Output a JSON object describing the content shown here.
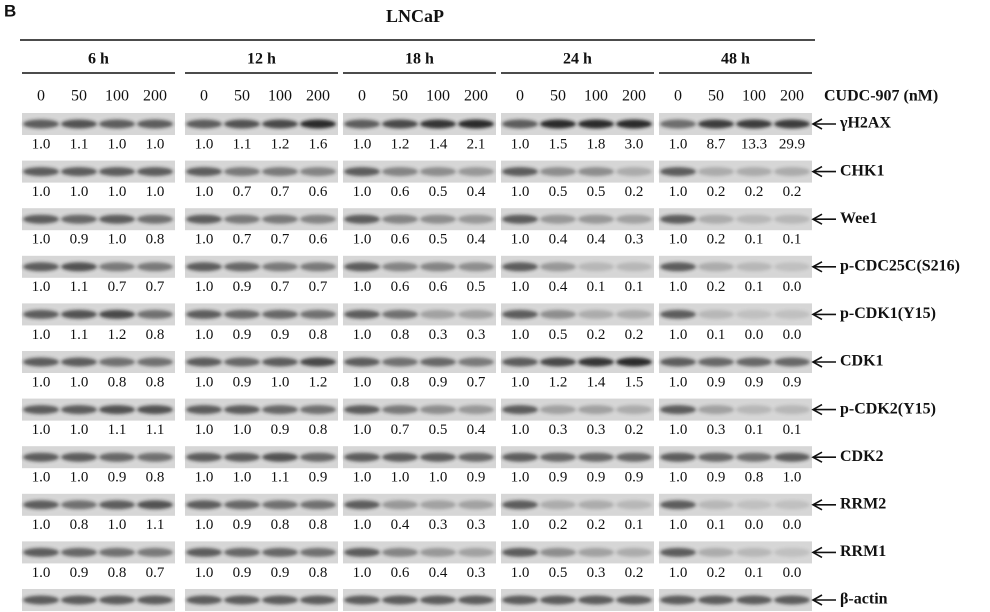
{
  "panel": "B",
  "title": "LNCaP",
  "treatment": "CUDC-907 (nM)",
  "timepoints": [
    {
      "label": "6 h",
      "doses": [
        "0",
        "50",
        "100",
        "200"
      ]
    },
    {
      "label": "12 h",
      "doses": [
        "0",
        "50",
        "100",
        "200"
      ]
    },
    {
      "label": "18 h",
      "doses": [
        "0",
        "50",
        "100",
        "200"
      ]
    },
    {
      "label": "24 h",
      "doses": [
        "0",
        "50",
        "100",
        "200"
      ]
    },
    {
      "label": "48 h",
      "doses": [
        "0",
        "50",
        "100",
        "200"
      ]
    }
  ],
  "rows": [
    {
      "protein": "γH2AX",
      "values": [
        [
          "1.0",
          "1.1",
          "1.0",
          "1.0"
        ],
        [
          "1.0",
          "1.1",
          "1.2",
          "1.6"
        ],
        [
          "1.0",
          "1.2",
          "1.4",
          "2.1"
        ],
        [
          "1.0",
          "1.5",
          "1.8",
          "3.0"
        ],
        [
          "1.0",
          "8.7",
          "13.3",
          "29.9"
        ]
      ]
    },
    {
      "protein": "CHK1",
      "values": [
        [
          "1.0",
          "1.0",
          "1.0",
          "1.0"
        ],
        [
          "1.0",
          "0.7",
          "0.7",
          "0.6"
        ],
        [
          "1.0",
          "0.6",
          "0.5",
          "0.4"
        ],
        [
          "1.0",
          "0.5",
          "0.5",
          "0.2"
        ],
        [
          "1.0",
          "0.2",
          "0.2",
          "0.2"
        ]
      ]
    },
    {
      "protein": "Wee1",
      "values": [
        [
          "1.0",
          "0.9",
          "1.0",
          "0.8"
        ],
        [
          "1.0",
          "0.7",
          "0.7",
          "0.6"
        ],
        [
          "1.0",
          "0.6",
          "0.5",
          "0.4"
        ],
        [
          "1.0",
          "0.4",
          "0.4",
          "0.3"
        ],
        [
          "1.0",
          "0.2",
          "0.1",
          "0.1"
        ]
      ]
    },
    {
      "protein": "p-CDC25C(S216)",
      "values": [
        [
          "1.0",
          "1.1",
          "0.7",
          "0.7"
        ],
        [
          "1.0",
          "0.9",
          "0.7",
          "0.7"
        ],
        [
          "1.0",
          "0.6",
          "0.6",
          "0.5"
        ],
        [
          "1.0",
          "0.4",
          "0.1",
          "0.1"
        ],
        [
          "1.0",
          "0.2",
          "0.1",
          "0.0"
        ]
      ]
    },
    {
      "protein": "p-CDK1(Y15)",
      "values": [
        [
          "1.0",
          "1.1",
          "1.2",
          "0.8"
        ],
        [
          "1.0",
          "0.9",
          "0.9",
          "0.8"
        ],
        [
          "1.0",
          "0.8",
          "0.3",
          "0.3"
        ],
        [
          "1.0",
          "0.5",
          "0.2",
          "0.2"
        ],
        [
          "1.0",
          "0.1",
          "0.0",
          "0.0"
        ]
      ]
    },
    {
      "protein": "CDK1",
      "values": [
        [
          "1.0",
          "1.0",
          "0.8",
          "0.8"
        ],
        [
          "1.0",
          "0.9",
          "1.0",
          "1.2"
        ],
        [
          "1.0",
          "0.8",
          "0.9",
          "0.7"
        ],
        [
          "1.0",
          "1.2",
          "1.4",
          "1.5"
        ],
        [
          "1.0",
          "0.9",
          "0.9",
          "0.9"
        ]
      ]
    },
    {
      "protein": "p-CDK2(Y15)",
      "values": [
        [
          "1.0",
          "1.0",
          "1.1",
          "1.1"
        ],
        [
          "1.0",
          "1.0",
          "0.9",
          "0.8"
        ],
        [
          "1.0",
          "0.7",
          "0.5",
          "0.4"
        ],
        [
          "1.0",
          "0.3",
          "0.3",
          "0.2"
        ],
        [
          "1.0",
          "0.3",
          "0.1",
          "0.1"
        ]
      ]
    },
    {
      "protein": "CDK2",
      "values": [
        [
          "1.0",
          "1.0",
          "0.9",
          "0.8"
        ],
        [
          "1.0",
          "1.0",
          "1.1",
          "0.9"
        ],
        [
          "1.0",
          "1.0",
          "1.0",
          "0.9"
        ],
        [
          "1.0",
          "0.9",
          "0.9",
          "0.9"
        ],
        [
          "1.0",
          "0.9",
          "0.8",
          "1.0"
        ]
      ]
    },
    {
      "protein": "RRM2",
      "values": [
        [
          "1.0",
          "0.8",
          "1.0",
          "1.1"
        ],
        [
          "1.0",
          "0.9",
          "0.8",
          "0.8"
        ],
        [
          "1.0",
          "0.4",
          "0.3",
          "0.3"
        ],
        [
          "1.0",
          "0.2",
          "0.2",
          "0.1"
        ],
        [
          "1.0",
          "0.1",
          "0.0",
          "0.0"
        ]
      ]
    },
    {
      "protein": "RRM1",
      "values": [
        [
          "1.0",
          "0.9",
          "0.8",
          "0.7"
        ],
        [
          "1.0",
          "0.9",
          "0.9",
          "0.8"
        ],
        [
          "1.0",
          "0.6",
          "0.4",
          "0.3"
        ],
        [
          "1.0",
          "0.5",
          "0.3",
          "0.2"
        ],
        [
          "1.0",
          "0.2",
          "0.1",
          "0.0"
        ]
      ]
    },
    {
      "protein": "β-actin"
    }
  ]
}
